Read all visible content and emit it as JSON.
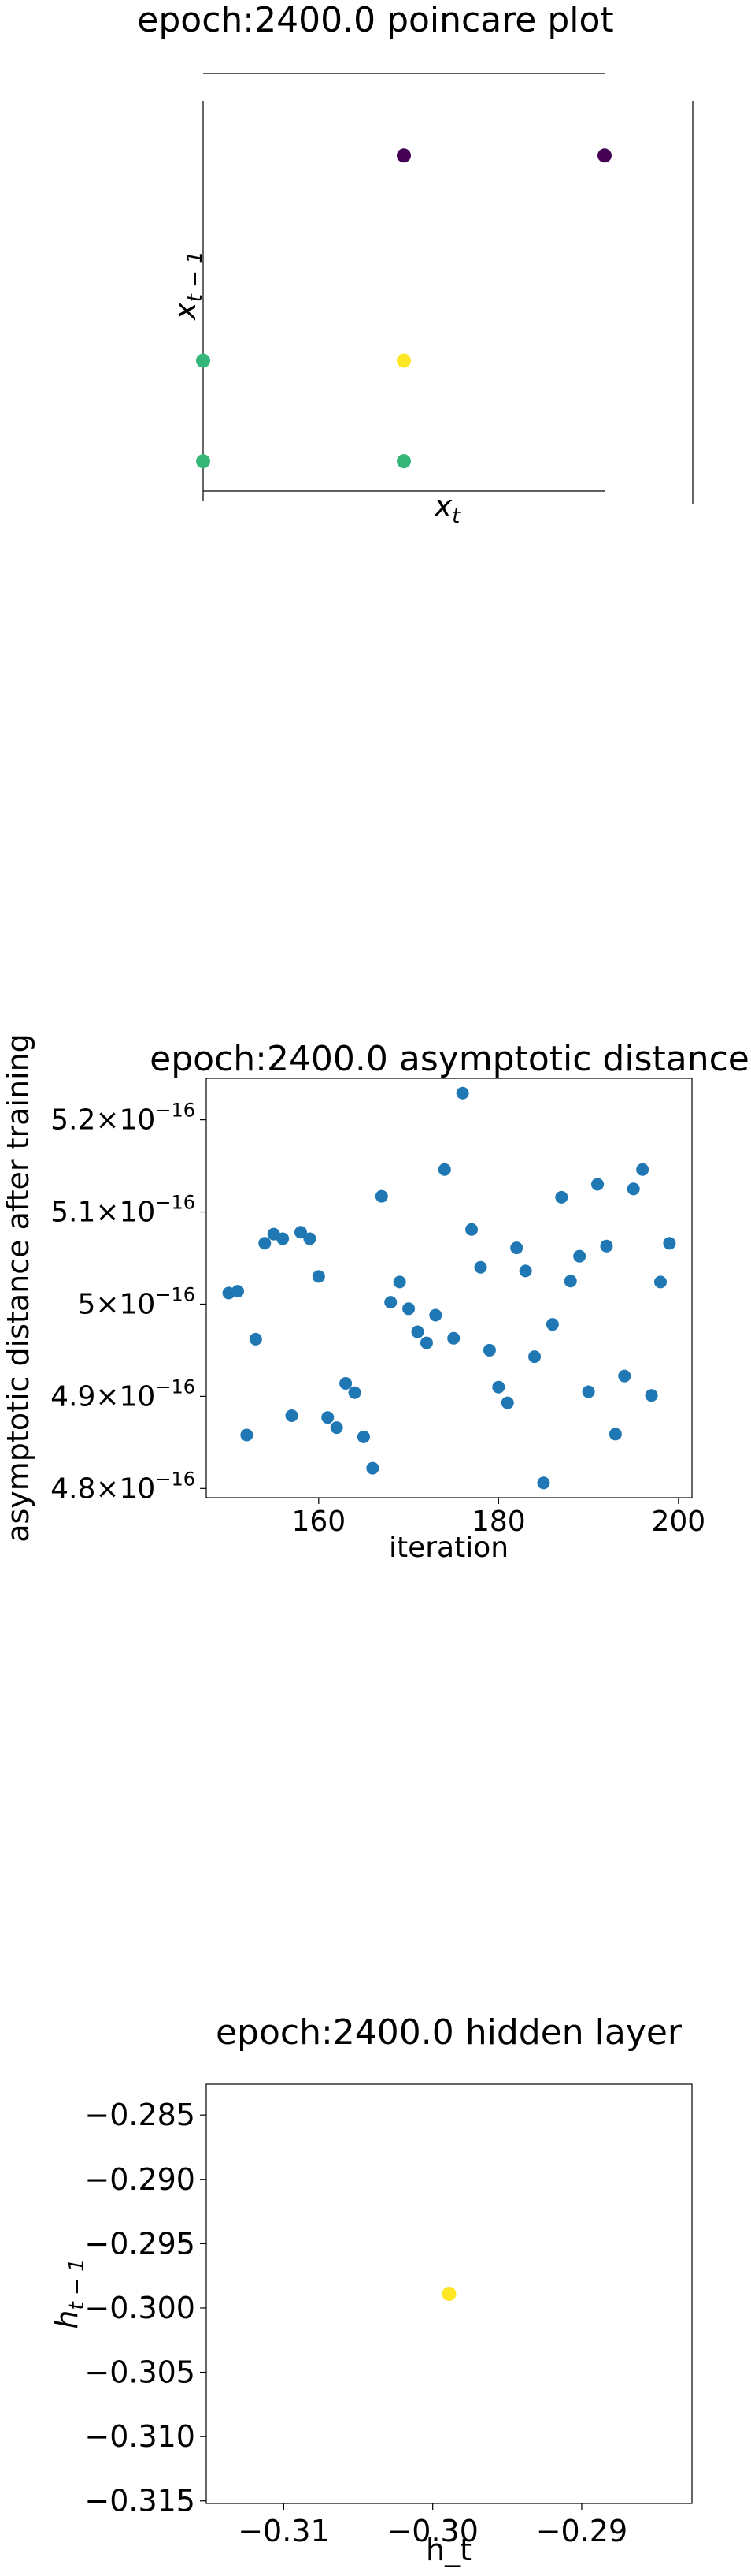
{
  "chart_data": [
    {
      "type": "scatter",
      "title": "epoch:2400.0 poincare plot",
      "xlabel": "x_t",
      "ylabel": "x_{t-1}",
      "series": [
        {
          "points": [
            {
              "x": 0.5,
              "y": 0.9,
              "color": "#440154"
            },
            {
              "x": 1.0,
              "y": 0.9,
              "color": "#440154"
            },
            {
              "x": 0.0,
              "y": 0.35,
              "color": "#35b779"
            },
            {
              "x": 0.5,
              "y": 0.35,
              "color": "#fde725"
            },
            {
              "x": 0.0,
              "y": 0.08,
              "color": "#35b779"
            },
            {
              "x": 0.5,
              "y": 0.08,
              "color": "#35b779"
            }
          ]
        }
      ]
    },
    {
      "type": "scatter",
      "title": "epoch:2400.0 asymptotic distance",
      "xlabel": "iteration",
      "ylabel": "asymptotic distance after training",
      "xlim": [
        147.5,
        201.5
      ],
      "ylim": [
        4.79e-16,
        5.245e-16
      ],
      "xticks": [
        160,
        180,
        200
      ],
      "yticks": [
        {
          "value": 4.8e-16,
          "mantissa": "4.8",
          "base": "10",
          "exp": "−16"
        },
        {
          "value": 4.9e-16,
          "mantissa": "4.9",
          "base": "10",
          "exp": "−16"
        },
        {
          "value": 5e-16,
          "mantissa": "5",
          "base": "10",
          "exp": "−16"
        },
        {
          "value": 5.1e-16,
          "mantissa": "5.1",
          "base": "10",
          "exp": "−16"
        },
        {
          "value": 5.2e-16,
          "mantissa": "5.2",
          "base": "10",
          "exp": "−16"
        }
      ],
      "color": "#1f77b4",
      "series": [
        {
          "x": [
            150,
            151,
            152,
            153,
            154,
            155,
            156,
            157,
            158,
            159,
            160,
            161,
            162,
            163,
            164,
            165,
            166,
            167,
            168,
            169,
            170,
            171,
            172,
            173,
            174,
            175,
            176,
            177,
            178,
            179,
            180,
            181,
            182,
            183,
            184,
            185,
            186,
            187,
            188,
            189,
            190,
            191,
            192,
            193,
            194,
            195,
            196,
            197,
            198,
            199
          ],
          "y": [
            5.012e-16,
            5.014e-16,
            4.858e-16,
            4.962e-16,
            5.066e-16,
            5.076e-16,
            5.071e-16,
            4.879e-16,
            5.078e-16,
            5.071e-16,
            5.03e-16,
            4.877e-16,
            4.866e-16,
            4.914e-16,
            4.904e-16,
            4.856e-16,
            4.822e-16,
            5.117e-16,
            5.002e-16,
            5.024e-16,
            4.995e-16,
            4.97e-16,
            4.958e-16,
            4.988e-16,
            5.146e-16,
            4.963e-16,
            5.229e-16,
            5.081e-16,
            5.04e-16,
            4.95e-16,
            4.91e-16,
            4.893e-16,
            5.061e-16,
            5.036e-16,
            4.943e-16,
            4.806e-16,
            4.978e-16,
            5.116e-16,
            5.025e-16,
            5.052e-16,
            4.905e-16,
            5.13e-16,
            5.063e-16,
            4.859e-16,
            4.922e-16,
            5.125e-16,
            5.146e-16,
            4.901e-16,
            5.024e-16,
            5.066e-16
          ]
        }
      ]
    },
    {
      "type": "scatter",
      "title": "epoch:2400.0 hidden layer",
      "xlabel": "h_t",
      "ylabel": "h_{t-1}",
      "xlim": [
        -0.3152,
        -0.2826
      ],
      "ylim": [
        -0.3152,
        -0.2826
      ],
      "xticks": [
        {
          "value": -0.31,
          "label": "−0.31"
        },
        {
          "value": -0.3,
          "label": "−0.30"
        },
        {
          "value": -0.29,
          "label": "−0.29"
        }
      ],
      "yticks": [
        {
          "value": -0.285,
          "label": "−0.285"
        },
        {
          "value": -0.29,
          "label": "−0.290"
        },
        {
          "value": -0.295,
          "label": "−0.295"
        },
        {
          "value": -0.3,
          "label": "−0.300"
        },
        {
          "value": -0.305,
          "label": "−0.305"
        },
        {
          "value": -0.31,
          "label": "−0.310"
        },
        {
          "value": -0.315,
          "label": "−0.315"
        }
      ],
      "series": [
        {
          "x": [
            -0.2989
          ],
          "y": [
            -0.2989
          ],
          "color": "#fde725"
        }
      ]
    }
  ]
}
